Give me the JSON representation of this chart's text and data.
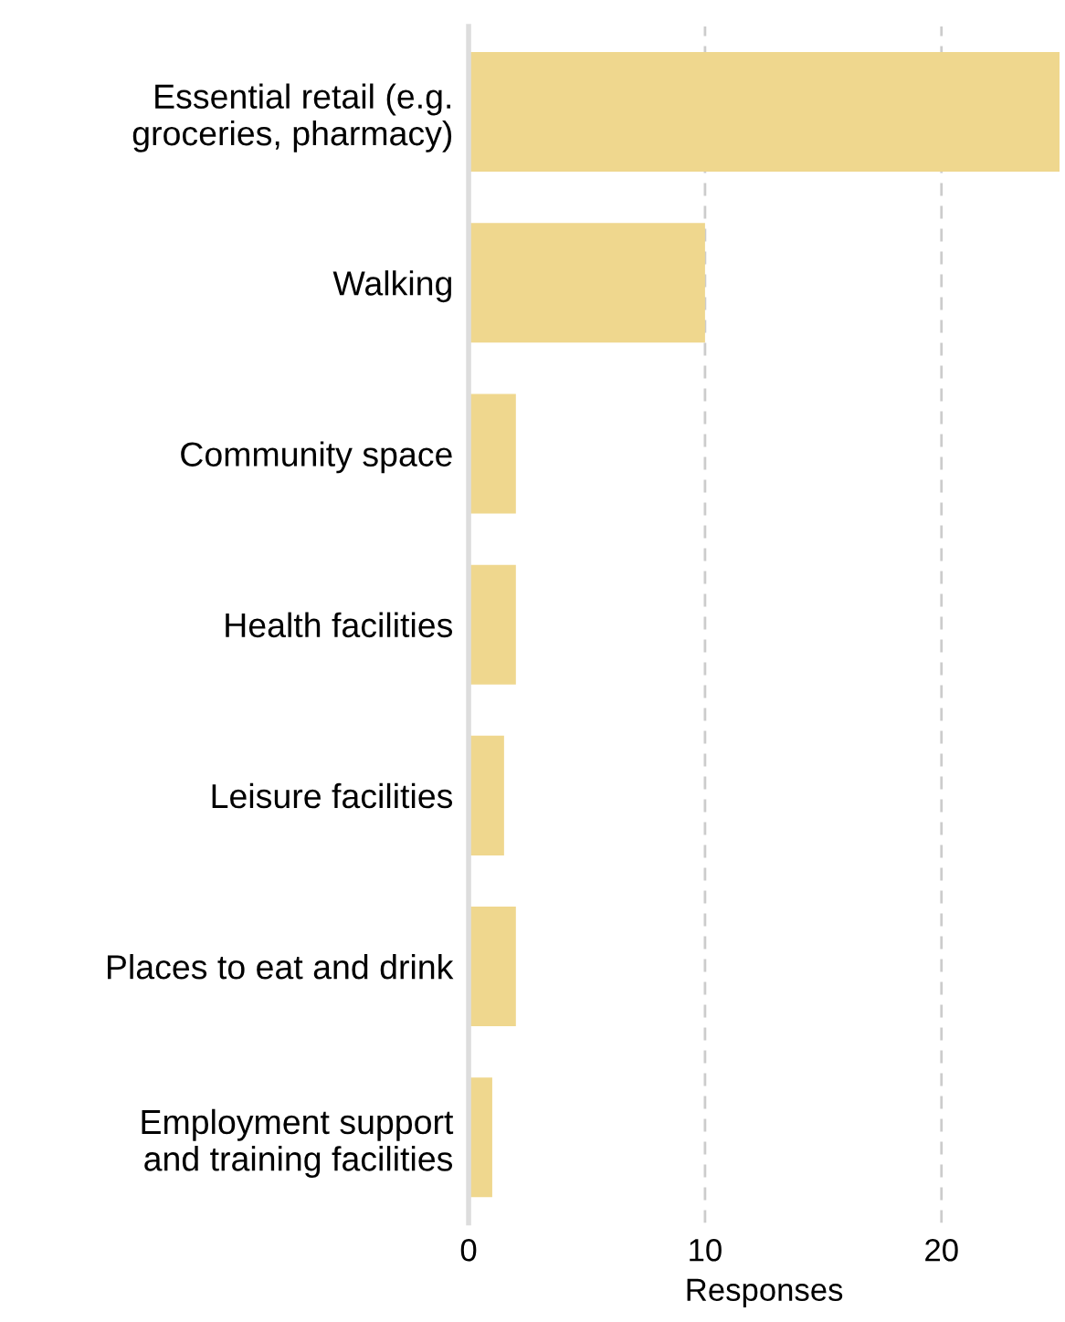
{
  "chart_data": {
    "type": "bar",
    "orientation": "horizontal",
    "xlabel": "Responses",
    "categories": [
      "Essential retail (e.g.\ngroceries, pharmacy)",
      "Walking",
      "Community space",
      "Health facilities",
      "Leisure facilities",
      "Places to eat and drink",
      "Employment support\nand training facilities"
    ],
    "values": [
      25,
      10,
      2,
      2,
      1.5,
      2,
      1
    ],
    "color": "#efd78e",
    "xlim": [
      0,
      25
    ],
    "xticks": [
      0,
      10,
      20
    ],
    "grid": "x"
  }
}
